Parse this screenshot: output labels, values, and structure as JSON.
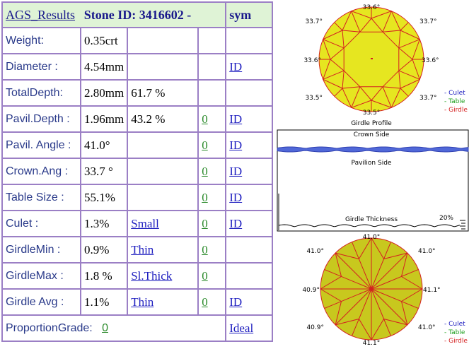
{
  "header": {
    "title": "AGS_Results",
    "stone_label": "Stone ID:  3416602 -",
    "sym_label": "sym"
  },
  "rows": [
    {
      "label": "Weight:",
      "value": "0.35crt",
      "extra": "",
      "zero": "",
      "id": ""
    },
    {
      "label": "Diameter :",
      "value": "4.54mm",
      "extra": "",
      "zero": "",
      "id": "ID"
    },
    {
      "label": "TotalDepth:",
      "value": "2.80mm",
      "extra": "61.7 %",
      "zero": "",
      "id": ""
    },
    {
      "label": "Pavil.Depth :",
      "value": "1.96mm",
      "extra": "43.2 %",
      "zero": "0",
      "id": "ID"
    },
    {
      "label": "Pavil. Angle :",
      "value": "41.0°",
      "extra": "",
      "zero": "0",
      "id": "ID"
    },
    {
      "label": "Crown.Ang :",
      "value": " 33.7 °",
      "extra": "",
      "zero": "0",
      "id": "ID"
    },
    {
      "label": "Table Size :",
      "value": "55.1%",
      "extra": "",
      "zero": "0",
      "id": "ID"
    },
    {
      "label": "Culet :",
      "value": "1.3%",
      "extra": "Small",
      "zero": "0",
      "id": "ID"
    },
    {
      "label": "GirdleMin :",
      "value": "0.9%",
      "extra": "Thin",
      "zero": "0",
      "id": ""
    },
    {
      "label": "GirdleMax :",
      "value": "1.8 %",
      "extra": "Sl.Thick",
      "zero": "0",
      "id": ""
    },
    {
      "label": "Girdle Avg :",
      "value": "1.1%",
      "extra": "Thin",
      "zero": "0",
      "id": "ID"
    }
  ],
  "footer": {
    "label": "ProportionGrade:",
    "grade_num": "0",
    "grade": "Ideal"
  },
  "crown_view": {
    "angles": [
      "33.6°",
      "33.7°",
      "33.6°",
      "33.7°",
      "33.5°",
      "33.5°",
      "33.6°",
      "33.7°"
    ],
    "legend": [
      "- Culet",
      "- Table",
      "- Girdle"
    ]
  },
  "profile": {
    "title": "Girdle Profile",
    "crown_side": "Crown Side",
    "pavilion_side": "Pavilion Side",
    "thickness_label": "Girdle Thickness",
    "percent": "20%"
  },
  "pavilion_view": {
    "angles": [
      "41.0°",
      "41.0°",
      "41.1°",
      "41.0°",
      "41.1°",
      "40.9°",
      "40.9°",
      "41.0°"
    ],
    "legend": [
      "- Culet",
      "- Table",
      "- Girdle"
    ]
  },
  "colors": {
    "border": "#9b7fc5",
    "header_bg": "#dff3d6",
    "stone_fill": "#e6e620",
    "pavilion_fill": "#c8c81e",
    "facet": "#d42020"
  }
}
